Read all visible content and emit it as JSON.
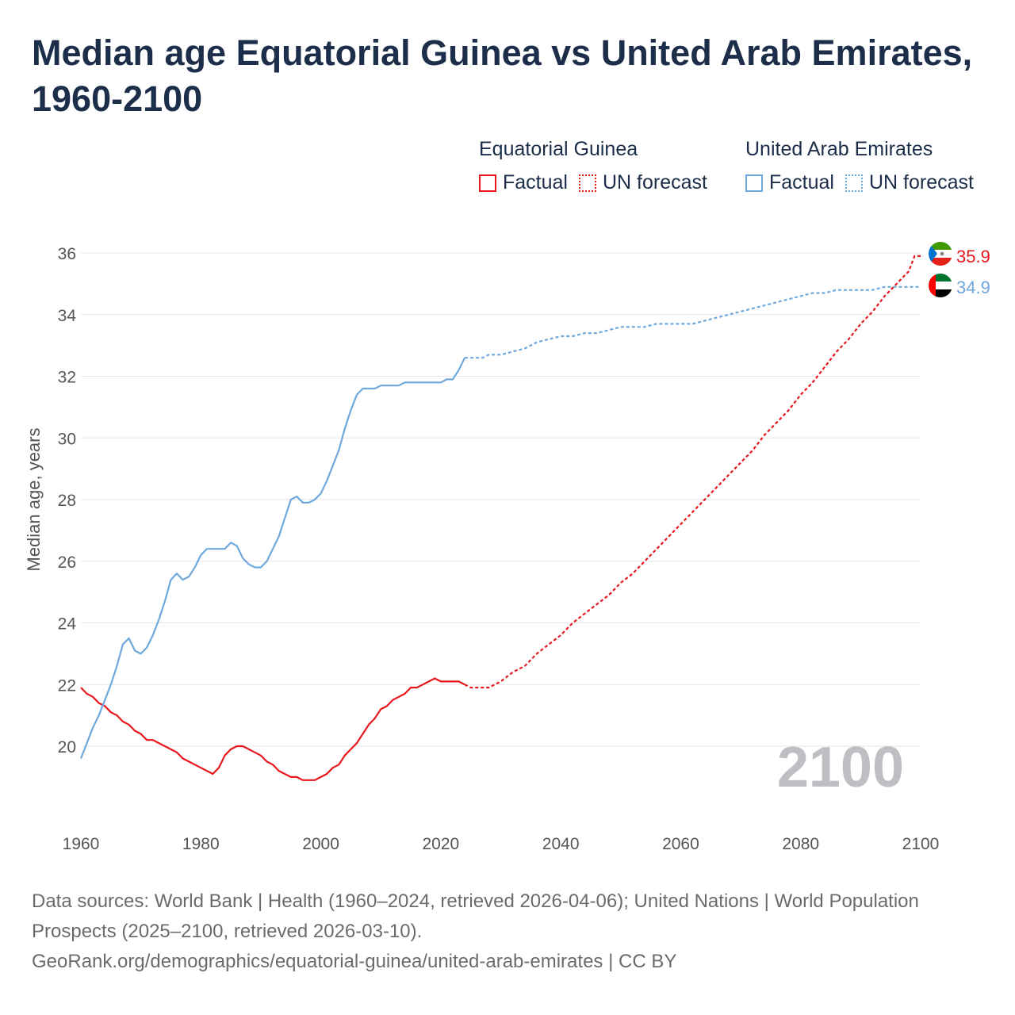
{
  "title": "Median age Equatorial Guinea vs United Arab Emirates, 1960-2100",
  "legend": {
    "groups": [
      {
        "title": "Equatorial Guinea",
        "factual_label": "Factual",
        "forecast_label": "UN forecast",
        "color": "#e8161d"
      },
      {
        "title": "United Arab Emirates",
        "factual_label": "Factual",
        "forecast_label": "UN forecast",
        "color": "#6fa8dc"
      }
    ]
  },
  "watermark_year": "2100",
  "source": {
    "line1": "Data sources: World Bank | Health (1960–2024, retrieved 2026-04-06); United Nations | World Population Prospects (2025–2100, retrieved 2026-03-10).",
    "line2": "GeoRank.org/demographics/equatorial-guinea/united-arab-emirates | CC BY"
  },
  "chart_data": {
    "type": "line",
    "title": "Median age Equatorial Guinea vs United Arab Emirates, 1960-2100",
    "ylabel": "Median age, years",
    "xlabel": "",
    "xlim": [
      1960,
      2100
    ],
    "ylim": [
      18,
      36.5
    ],
    "x_ticks": [
      1960,
      1980,
      2000,
      2020,
      2040,
      2060,
      2080,
      2100
    ],
    "y_ticks": [
      20,
      22,
      24,
      26,
      28,
      30,
      32,
      34,
      36
    ],
    "grid": true,
    "forecast_start": 2024,
    "series": [
      {
        "name": "Equatorial Guinea",
        "color": "#e8161d",
        "end_label": "35.9",
        "points": [
          [
            1960,
            21.9
          ],
          [
            1961,
            21.7
          ],
          [
            1962,
            21.6
          ],
          [
            1963,
            21.4
          ],
          [
            1964,
            21.3
          ],
          [
            1965,
            21.1
          ],
          [
            1966,
            21.0
          ],
          [
            1967,
            20.8
          ],
          [
            1968,
            20.7
          ],
          [
            1969,
            20.5
          ],
          [
            1970,
            20.4
          ],
          [
            1971,
            20.2
          ],
          [
            1972,
            20.2
          ],
          [
            1973,
            20.1
          ],
          [
            1974,
            20.0
          ],
          [
            1975,
            19.9
          ],
          [
            1976,
            19.8
          ],
          [
            1977,
            19.6
          ],
          [
            1978,
            19.5
          ],
          [
            1979,
            19.4
          ],
          [
            1980,
            19.3
          ],
          [
            1981,
            19.2
          ],
          [
            1982,
            19.1
          ],
          [
            1983,
            19.3
          ],
          [
            1984,
            19.7
          ],
          [
            1985,
            19.9
          ],
          [
            1986,
            20.0
          ],
          [
            1987,
            20.0
          ],
          [
            1988,
            19.9
          ],
          [
            1989,
            19.8
          ],
          [
            1990,
            19.7
          ],
          [
            1991,
            19.5
          ],
          [
            1992,
            19.4
          ],
          [
            1993,
            19.2
          ],
          [
            1994,
            19.1
          ],
          [
            1995,
            19.0
          ],
          [
            1996,
            19.0
          ],
          [
            1997,
            18.9
          ],
          [
            1998,
            18.9
          ],
          [
            1999,
            18.9
          ],
          [
            2000,
            19.0
          ],
          [
            2001,
            19.1
          ],
          [
            2002,
            19.3
          ],
          [
            2003,
            19.4
          ],
          [
            2004,
            19.7
          ],
          [
            2005,
            19.9
          ],
          [
            2006,
            20.1
          ],
          [
            2007,
            20.4
          ],
          [
            2008,
            20.7
          ],
          [
            2009,
            20.9
          ],
          [
            2010,
            21.2
          ],
          [
            2011,
            21.3
          ],
          [
            2012,
            21.5
          ],
          [
            2013,
            21.6
          ],
          [
            2014,
            21.7
          ],
          [
            2015,
            21.9
          ],
          [
            2016,
            21.9
          ],
          [
            2017,
            22.0
          ],
          [
            2018,
            22.1
          ],
          [
            2019,
            22.2
          ],
          [
            2020,
            22.1
          ],
          [
            2021,
            22.1
          ],
          [
            2022,
            22.1
          ],
          [
            2023,
            22.1
          ],
          [
            2024,
            22.0
          ],
          [
            2025,
            21.9
          ],
          [
            2026,
            21.9
          ],
          [
            2027,
            21.9
          ],
          [
            2028,
            21.9
          ],
          [
            2030,
            22.1
          ],
          [
            2032,
            22.4
          ],
          [
            2034,
            22.6
          ],
          [
            2036,
            23.0
          ],
          [
            2038,
            23.3
          ],
          [
            2040,
            23.6
          ],
          [
            2042,
            24.0
          ],
          [
            2044,
            24.3
          ],
          [
            2046,
            24.6
          ],
          [
            2048,
            24.9
          ],
          [
            2050,
            25.3
          ],
          [
            2052,
            25.6
          ],
          [
            2054,
            26.0
          ],
          [
            2056,
            26.4
          ],
          [
            2058,
            26.8
          ],
          [
            2060,
            27.2
          ],
          [
            2062,
            27.6
          ],
          [
            2064,
            28.0
          ],
          [
            2066,
            28.4
          ],
          [
            2068,
            28.8
          ],
          [
            2070,
            29.2
          ],
          [
            2072,
            29.6
          ],
          [
            2074,
            30.1
          ],
          [
            2076,
            30.5
          ],
          [
            2078,
            30.9
          ],
          [
            2080,
            31.4
          ],
          [
            2082,
            31.8
          ],
          [
            2084,
            32.3
          ],
          [
            2086,
            32.8
          ],
          [
            2088,
            33.2
          ],
          [
            2090,
            33.7
          ],
          [
            2092,
            34.1
          ],
          [
            2094,
            34.6
          ],
          [
            2096,
            35.0
          ],
          [
            2098,
            35.4
          ],
          [
            2099,
            35.9
          ],
          [
            2100,
            35.9
          ]
        ]
      },
      {
        "name": "United Arab Emirates",
        "color": "#6fa8dc",
        "end_label": "34.9",
        "points": [
          [
            1960,
            19.6
          ],
          [
            1961,
            20.1
          ],
          [
            1962,
            20.6
          ],
          [
            1963,
            21.0
          ],
          [
            1964,
            21.5
          ],
          [
            1965,
            22.0
          ],
          [
            1966,
            22.6
          ],
          [
            1967,
            23.3
          ],
          [
            1968,
            23.5
          ],
          [
            1969,
            23.1
          ],
          [
            1970,
            23.0
          ],
          [
            1971,
            23.2
          ],
          [
            1972,
            23.6
          ],
          [
            1973,
            24.1
          ],
          [
            1974,
            24.7
          ],
          [
            1975,
            25.4
          ],
          [
            1976,
            25.6
          ],
          [
            1977,
            25.4
          ],
          [
            1978,
            25.5
          ],
          [
            1979,
            25.8
          ],
          [
            1980,
            26.2
          ],
          [
            1981,
            26.4
          ],
          [
            1982,
            26.4
          ],
          [
            1983,
            26.4
          ],
          [
            1984,
            26.4
          ],
          [
            1985,
            26.6
          ],
          [
            1986,
            26.5
          ],
          [
            1987,
            26.1
          ],
          [
            1988,
            25.9
          ],
          [
            1989,
            25.8
          ],
          [
            1990,
            25.8
          ],
          [
            1991,
            26.0
          ],
          [
            1992,
            26.4
          ],
          [
            1993,
            26.8
          ],
          [
            1994,
            27.4
          ],
          [
            1995,
            28.0
          ],
          [
            1996,
            28.1
          ],
          [
            1997,
            27.9
          ],
          [
            1998,
            27.9
          ],
          [
            1999,
            28.0
          ],
          [
            2000,
            28.2
          ],
          [
            2001,
            28.6
          ],
          [
            2002,
            29.1
          ],
          [
            2003,
            29.6
          ],
          [
            2004,
            30.3
          ],
          [
            2005,
            30.9
          ],
          [
            2006,
            31.4
          ],
          [
            2007,
            31.6
          ],
          [
            2008,
            31.6
          ],
          [
            2009,
            31.6
          ],
          [
            2010,
            31.7
          ],
          [
            2011,
            31.7
          ],
          [
            2012,
            31.7
          ],
          [
            2013,
            31.7
          ],
          [
            2014,
            31.8
          ],
          [
            2015,
            31.8
          ],
          [
            2016,
            31.8
          ],
          [
            2017,
            31.8
          ],
          [
            2018,
            31.8
          ],
          [
            2019,
            31.8
          ],
          [
            2020,
            31.8
          ],
          [
            2021,
            31.9
          ],
          [
            2022,
            31.9
          ],
          [
            2023,
            32.2
          ],
          [
            2024,
            32.6
          ],
          [
            2025,
            32.6
          ],
          [
            2027,
            32.6
          ],
          [
            2028,
            32.7
          ],
          [
            2030,
            32.7
          ],
          [
            2032,
            32.8
          ],
          [
            2034,
            32.9
          ],
          [
            2036,
            33.1
          ],
          [
            2038,
            33.2
          ],
          [
            2040,
            33.3
          ],
          [
            2042,
            33.3
          ],
          [
            2044,
            33.4
          ],
          [
            2046,
            33.4
          ],
          [
            2048,
            33.5
          ],
          [
            2050,
            33.6
          ],
          [
            2052,
            33.6
          ],
          [
            2054,
            33.6
          ],
          [
            2056,
            33.7
          ],
          [
            2058,
            33.7
          ],
          [
            2060,
            33.7
          ],
          [
            2062,
            33.7
          ],
          [
            2064,
            33.8
          ],
          [
            2066,
            33.9
          ],
          [
            2068,
            34.0
          ],
          [
            2070,
            34.1
          ],
          [
            2072,
            34.2
          ],
          [
            2074,
            34.3
          ],
          [
            2076,
            34.4
          ],
          [
            2078,
            34.5
          ],
          [
            2080,
            34.6
          ],
          [
            2082,
            34.7
          ],
          [
            2084,
            34.7
          ],
          [
            2086,
            34.8
          ],
          [
            2088,
            34.8
          ],
          [
            2090,
            34.8
          ],
          [
            2092,
            34.8
          ],
          [
            2094,
            34.9
          ],
          [
            2096,
            34.9
          ],
          [
            2098,
            34.9
          ],
          [
            2100,
            34.9
          ]
        ]
      }
    ]
  }
}
